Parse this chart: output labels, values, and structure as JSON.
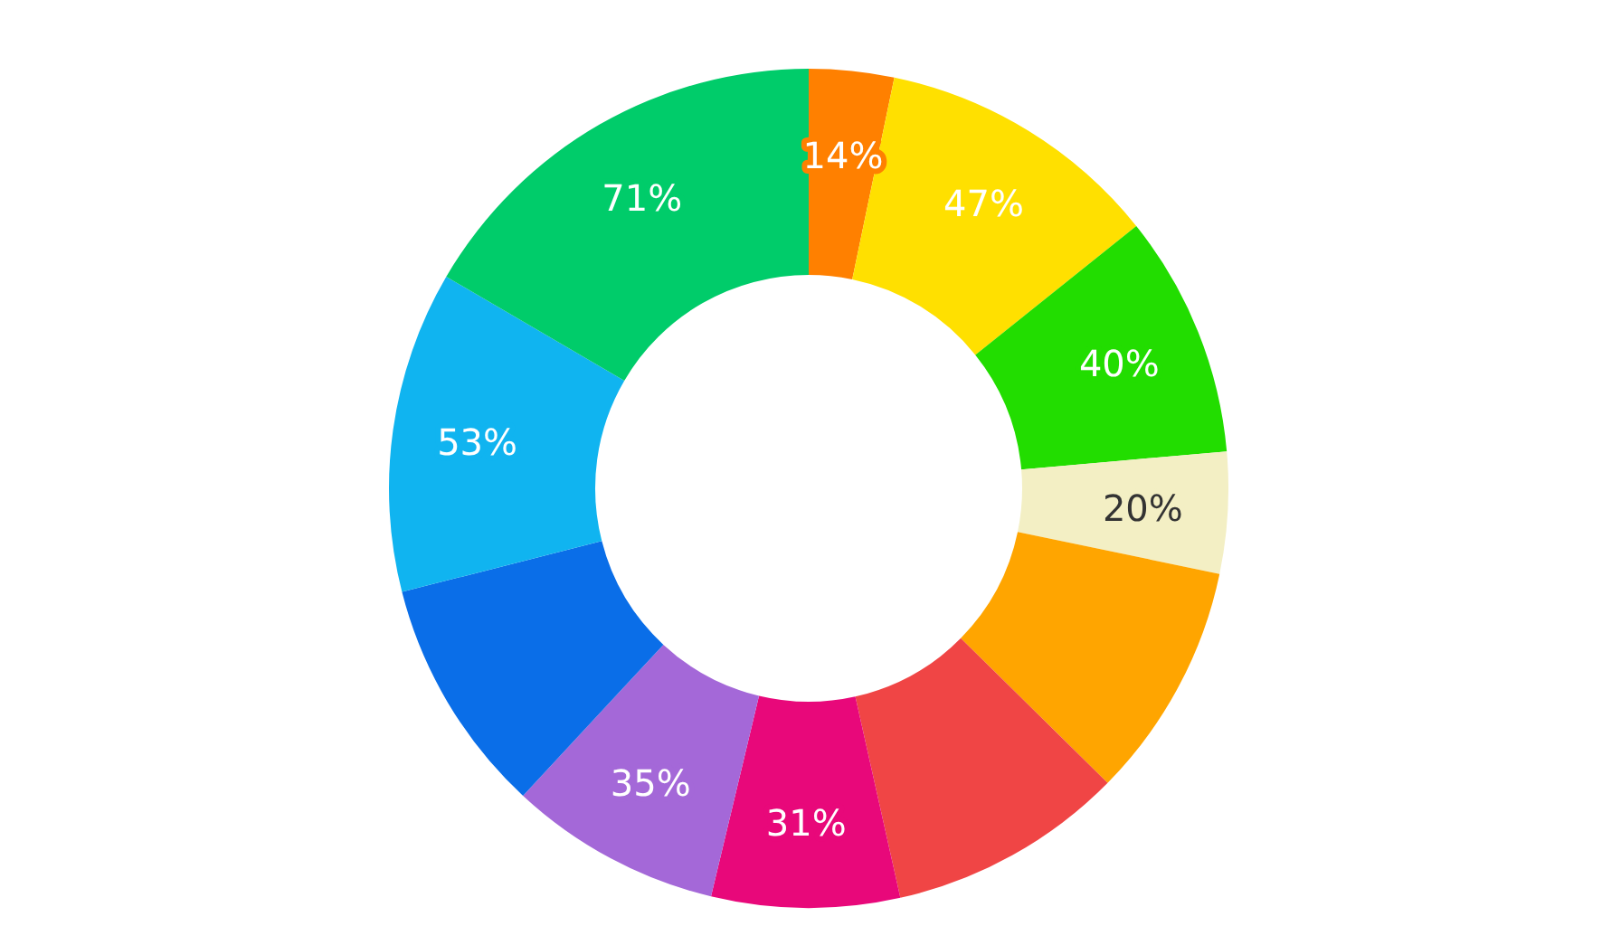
{
  "chart_data": {
    "type": "donut",
    "categories": [
      null,
      null,
      null,
      null,
      null,
      null,
      null,
      null,
      null,
      null,
      null
    ],
    "values": [
      14,
      47,
      40,
      20,
      39,
      39,
      31,
      35,
      39,
      53,
      71
    ],
    "colors": [
      "#ff8000",
      "#ffe000",
      "#22dd00",
      "#f3efc4",
      "#ffa500",
      "#f04545",
      "#e8087a",
      "#a468d8",
      "#0a6ee8",
      "#10b4f0",
      "#00cc6a"
    ],
    "value_labels": [
      "14%",
      "47%",
      "40%",
      "20%",
      null,
      null,
      "31%",
      "35%",
      null,
      "53%",
      "71%"
    ]
  }
}
